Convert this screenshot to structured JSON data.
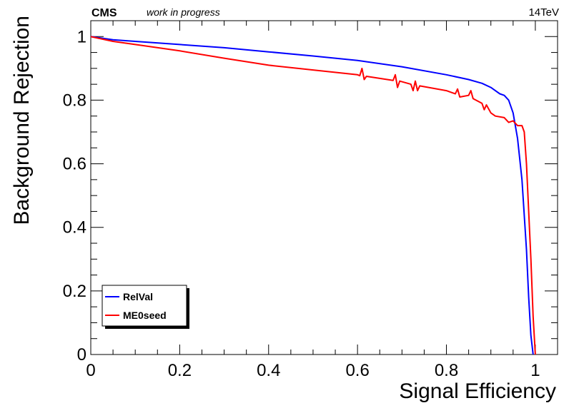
{
  "header": {
    "experiment": "CMS",
    "status": "work in progress",
    "energy": "14TeV"
  },
  "chart_data": {
    "type": "line",
    "xlabel": "Signal Efficiency",
    "ylabel": "Background Rejection",
    "xlim": [
      0,
      1.05
    ],
    "ylim": [
      0,
      1.05
    ],
    "xticks": [
      0,
      0.2,
      0.4,
      0.6,
      0.8,
      1
    ],
    "xtick_labels": [
      "0",
      "0.2",
      "0.4",
      "0.6",
      "0.8",
      "1"
    ],
    "yticks": [
      0,
      0.2,
      0.4,
      0.6,
      0.8,
      1
    ],
    "ytick_labels": [
      "0",
      "0.2",
      "0.4",
      "0.6",
      "0.8",
      "1"
    ],
    "grid": false,
    "legend_position": "bottom-left",
    "series": [
      {
        "name": "RelVal",
        "color": "#0000ff",
        "x": [
          0.0,
          0.05,
          0.1,
          0.2,
          0.3,
          0.4,
          0.5,
          0.6,
          0.7,
          0.8,
          0.85,
          0.88,
          0.9,
          0.92,
          0.93,
          0.94,
          0.95,
          0.96,
          0.97,
          0.98,
          0.985,
          0.99,
          0.995
        ],
        "y": [
          1.0,
          0.99,
          0.985,
          0.975,
          0.965,
          0.952,
          0.939,
          0.925,
          0.905,
          0.88,
          0.865,
          0.853,
          0.84,
          0.82,
          0.815,
          0.8,
          0.76,
          0.68,
          0.55,
          0.33,
          0.18,
          0.06,
          0.0
        ]
      },
      {
        "name": "ME0seed",
        "color": "#ff0000",
        "x": [
          0.0,
          0.05,
          0.1,
          0.2,
          0.3,
          0.4,
          0.5,
          0.6,
          0.605,
          0.61,
          0.615,
          0.62,
          0.68,
          0.685,
          0.69,
          0.695,
          0.72,
          0.725,
          0.73,
          0.735,
          0.74,
          0.8,
          0.82,
          0.825,
          0.83,
          0.85,
          0.855,
          0.86,
          0.88,
          0.885,
          0.89,
          0.9,
          0.91,
          0.93,
          0.94,
          0.95,
          0.96,
          0.97,
          0.975,
          0.98,
          0.985,
          0.99,
          0.995,
          1.0
        ],
        "y": [
          1.0,
          0.985,
          0.975,
          0.955,
          0.932,
          0.91,
          0.895,
          0.88,
          0.877,
          0.9,
          0.865,
          0.875,
          0.862,
          0.88,
          0.84,
          0.86,
          0.85,
          0.83,
          0.86,
          0.83,
          0.845,
          0.83,
          0.82,
          0.835,
          0.81,
          0.815,
          0.83,
          0.805,
          0.79,
          0.77,
          0.785,
          0.76,
          0.75,
          0.745,
          0.73,
          0.735,
          0.72,
          0.72,
          0.7,
          0.6,
          0.45,
          0.3,
          0.12,
          0.0
        ]
      }
    ]
  }
}
